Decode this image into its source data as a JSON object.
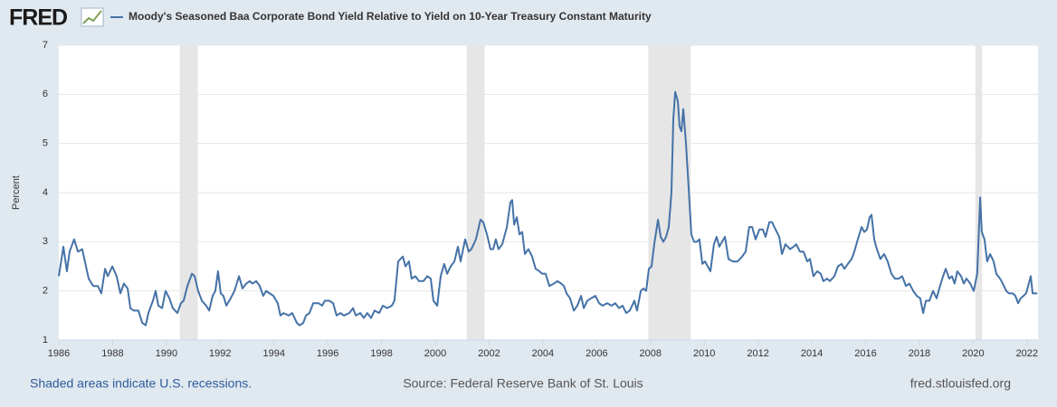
{
  "logo": "FRED",
  "chart_data": {
    "type": "line",
    "y_label": "Percent",
    "xlim": [
      1986,
      2022.41
    ],
    "xticks": [
      1986,
      1988,
      1990,
      1992,
      1994,
      1996,
      1998,
      2000,
      2002,
      2004,
      2006,
      2008,
      2010,
      2012,
      2014,
      2016,
      2018,
      2020,
      2022
    ],
    "ylim": [
      1,
      7
    ],
    "yticks": [
      1,
      2,
      3,
      4,
      5,
      6,
      7
    ],
    "grid": true,
    "recessions": [
      [
        1990.5,
        1991.17
      ],
      [
        2001.17,
        2001.83
      ],
      [
        2007.92,
        2009.5
      ],
      [
        2020.08,
        2020.33
      ]
    ],
    "recession_color": "#e6e6e6",
    "x": [
      1986.0,
      1986.17,
      1986.3,
      1986.4,
      1986.57,
      1986.71,
      1986.87,
      1987.01,
      1987.11,
      1987.28,
      1987.45,
      1987.58,
      1987.72,
      1987.82,
      1987.99,
      1988.15,
      1988.29,
      1988.42,
      1988.56,
      1988.66,
      1988.79,
      1988.96,
      1989.1,
      1989.23,
      1989.33,
      1989.5,
      1989.6,
      1989.7,
      1989.84,
      1989.97,
      1990.11,
      1990.24,
      1990.41,
      1990.54,
      1990.64,
      1990.78,
      1990.95,
      1991.05,
      1991.18,
      1991.32,
      1991.48,
      1991.59,
      1991.72,
      1991.82,
      1991.92,
      1992.02,
      1992.12,
      1992.23,
      1992.39,
      1992.53,
      1992.7,
      1992.83,
      1992.97,
      1993.1,
      1993.2,
      1993.34,
      1993.47,
      1993.6,
      1993.71,
      1993.84,
      1993.98,
      1994.14,
      1994.24,
      1994.35,
      1994.55,
      1994.68,
      1994.85,
      1994.95,
      1995.09,
      1995.19,
      1995.32,
      1995.46,
      1995.66,
      1995.79,
      1995.89,
      1996.06,
      1996.2,
      1996.33,
      1996.47,
      1996.6,
      1996.8,
      1996.94,
      1997.04,
      1997.21,
      1997.34,
      1997.47,
      1997.61,
      1997.74,
      1997.91,
      1998.05,
      1998.21,
      1998.38,
      1998.48,
      1998.62,
      1998.79,
      1998.89,
      1999.02,
      1999.12,
      1999.26,
      1999.39,
      1999.56,
      1999.7,
      1999.83,
      1999.93,
      2000.07,
      2000.2,
      2000.33,
      2000.44,
      2000.57,
      2000.71,
      2000.84,
      2000.94,
      2001.11,
      2001.24,
      2001.34,
      2001.51,
      2001.68,
      2001.78,
      2001.92,
      2002.05,
      2002.15,
      2002.25,
      2002.35,
      2002.49,
      2002.66,
      2002.79,
      2002.86,
      2002.93,
      2003.03,
      2003.13,
      2003.23,
      2003.33,
      2003.46,
      2003.6,
      2003.73,
      2003.87,
      2003.97,
      2004.1,
      2004.24,
      2004.41,
      2004.54,
      2004.68,
      2004.78,
      2004.88,
      2005.01,
      2005.15,
      2005.28,
      2005.42,
      2005.52,
      2005.65,
      2005.79,
      2005.95,
      2006.09,
      2006.22,
      2006.39,
      2006.56,
      2006.69,
      2006.83,
      2006.96,
      2007.1,
      2007.23,
      2007.4,
      2007.5,
      2007.64,
      2007.74,
      2007.84,
      2007.94,
      2008.04,
      2008.14,
      2008.28,
      2008.38,
      2008.48,
      2008.58,
      2008.68,
      2008.78,
      2008.85,
      2008.92,
      2009.02,
      2009.08,
      2009.15,
      2009.22,
      2009.32,
      2009.42,
      2009.52,
      2009.62,
      2009.72,
      2009.82,
      2009.93,
      2010.03,
      2010.13,
      2010.23,
      2010.36,
      2010.46,
      2010.56,
      2010.66,
      2010.77,
      2010.9,
      2011.07,
      2011.24,
      2011.41,
      2011.54,
      2011.67,
      2011.78,
      2011.91,
      2012.05,
      2012.18,
      2012.28,
      2012.42,
      2012.52,
      2012.65,
      2012.79,
      2012.89,
      2013.02,
      2013.19,
      2013.32,
      2013.42,
      2013.56,
      2013.69,
      2013.83,
      2013.93,
      2014.06,
      2014.2,
      2014.33,
      2014.43,
      2014.57,
      2014.67,
      2014.84,
      2014.97,
      2015.11,
      2015.21,
      2015.34,
      2015.48,
      2015.58,
      2015.71,
      2015.85,
      2015.95,
      2016.05,
      2016.15,
      2016.22,
      2016.32,
      2016.42,
      2016.55,
      2016.69,
      2016.82,
      2016.96,
      2017.09,
      2017.23,
      2017.36,
      2017.5,
      2017.63,
      2017.77,
      2017.9,
      2018.03,
      2018.14,
      2018.24,
      2018.37,
      2018.51,
      2018.64,
      2018.74,
      2018.88,
      2018.98,
      2019.11,
      2019.21,
      2019.31,
      2019.41,
      2019.55,
      2019.65,
      2019.75,
      2019.89,
      2020.02,
      2020.15,
      2020.26,
      2020.32,
      2020.42,
      2020.52,
      2020.63,
      2020.76,
      2020.86,
      2021.0,
      2021.1,
      2021.23,
      2021.33,
      2021.47,
      2021.57,
      2021.67,
      2021.77,
      2021.87,
      2021.97,
      2022.14,
      2022.21,
      2022.38
    ],
    "series": [
      {
        "name": "Moody's Seasoned Baa Corporate Bond Yield Relative to Yield on 10-Year Treasury Constant Maturity",
        "color": "#4572a7",
        "values": [
          2.3,
          2.9,
          2.4,
          2.8,
          3.05,
          2.8,
          2.85,
          2.5,
          2.25,
          2.1,
          2.1,
          1.95,
          2.45,
          2.3,
          2.5,
          2.3,
          1.95,
          2.15,
          2.05,
          1.65,
          1.6,
          1.6,
          1.35,
          1.3,
          1.55,
          1.8,
          2.0,
          1.7,
          1.65,
          2.0,
          1.85,
          1.65,
          1.55,
          1.75,
          1.8,
          2.1,
          2.35,
          2.3,
          2.0,
          1.8,
          1.7,
          1.6,
          1.9,
          2.0,
          2.4,
          1.95,
          1.9,
          1.7,
          1.85,
          2.0,
          2.3,
          2.05,
          2.15,
          2.2,
          2.15,
          2.2,
          2.1,
          1.9,
          2.0,
          1.95,
          1.9,
          1.75,
          1.5,
          1.55,
          1.5,
          1.55,
          1.35,
          1.3,
          1.35,
          1.5,
          1.55,
          1.75,
          1.75,
          1.7,
          1.8,
          1.8,
          1.75,
          1.5,
          1.55,
          1.5,
          1.55,
          1.65,
          1.5,
          1.55,
          1.45,
          1.55,
          1.45,
          1.6,
          1.55,
          1.7,
          1.65,
          1.7,
          1.8,
          2.6,
          2.7,
          2.5,
          2.6,
          2.25,
          2.3,
          2.2,
          2.2,
          2.3,
          2.25,
          1.8,
          1.7,
          2.3,
          2.55,
          2.35,
          2.5,
          2.6,
          2.9,
          2.6,
          3.05,
          2.8,
          2.85,
          3.05,
          3.45,
          3.4,
          3.15,
          2.85,
          2.85,
          3.05,
          2.85,
          2.95,
          3.3,
          3.8,
          3.85,
          3.35,
          3.5,
          3.15,
          3.2,
          2.75,
          2.85,
          2.7,
          2.45,
          2.4,
          2.35,
          2.35,
          2.1,
          2.15,
          2.2,
          2.15,
          2.1,
          1.95,
          1.85,
          1.6,
          1.7,
          1.9,
          1.65,
          1.8,
          1.85,
          1.9,
          1.75,
          1.7,
          1.75,
          1.7,
          1.75,
          1.65,
          1.7,
          1.55,
          1.6,
          1.8,
          1.6,
          2.0,
          2.05,
          2.0,
          2.45,
          2.5,
          2.95,
          3.45,
          3.1,
          3.0,
          3.1,
          3.3,
          4.0,
          5.5,
          6.05,
          5.85,
          5.35,
          5.25,
          5.7,
          5.0,
          4.1,
          3.15,
          3.0,
          3.0,
          3.05,
          2.55,
          2.6,
          2.5,
          2.4,
          2.95,
          3.1,
          2.9,
          3.0,
          3.1,
          2.65,
          2.6,
          2.6,
          2.7,
          2.8,
          3.3,
          3.3,
          3.05,
          3.25,
          3.25,
          3.1,
          3.4,
          3.4,
          3.25,
          3.1,
          2.75,
          2.95,
          2.85,
          2.9,
          2.95,
          2.8,
          2.8,
          2.6,
          2.65,
          2.3,
          2.4,
          2.35,
          2.2,
          2.25,
          2.2,
          2.3,
          2.5,
          2.55,
          2.45,
          2.55,
          2.65,
          2.8,
          3.05,
          3.3,
          3.2,
          3.25,
          3.5,
          3.55,
          3.05,
          2.85,
          2.65,
          2.75,
          2.6,
          2.35,
          2.25,
          2.25,
          2.3,
          2.1,
          2.15,
          2.0,
          1.9,
          1.85,
          1.55,
          1.8,
          1.8,
          2.0,
          1.85,
          2.05,
          2.3,
          2.45,
          2.25,
          2.3,
          2.15,
          2.4,
          2.3,
          2.15,
          2.25,
          2.15,
          2.0,
          2.35,
          3.9,
          3.2,
          3.05,
          2.6,
          2.75,
          2.6,
          2.35,
          2.25,
          2.15,
          2.0,
          1.95,
          1.95,
          1.9,
          1.75,
          1.85,
          1.9,
          1.95,
          2.3,
          1.95,
          1.95
        ]
      }
    ]
  },
  "footer": {
    "note": "Shaded areas indicate U.S. recessions.",
    "source": "Source: Federal Reserve Bank of St. Louis",
    "site": "fred.stlouisfed.org"
  }
}
